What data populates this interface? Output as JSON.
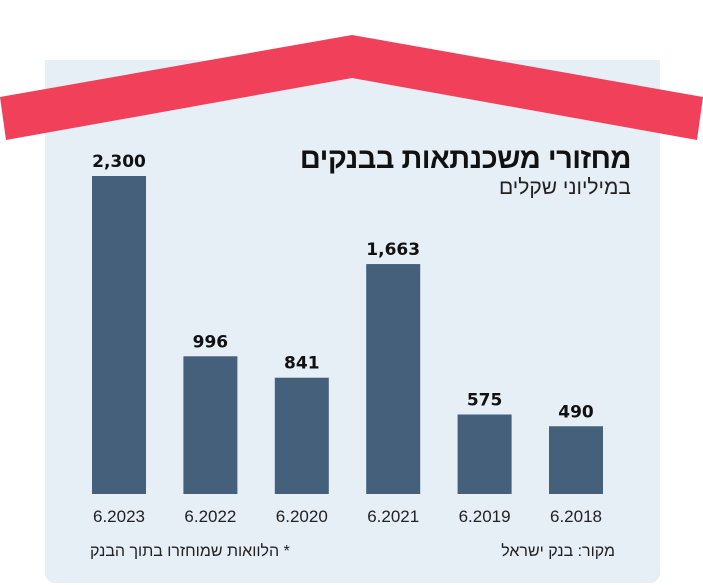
{
  "chart_data": {
    "type": "bar",
    "title": "מחזורי משכנתאות בבנקים",
    "subtitle": "במיליוני שקלים",
    "categories": [
      "6.2023",
      "6.2022",
      "6.2020",
      "6.2021",
      "6.2019",
      "6.2018"
    ],
    "values": [
      2300,
      996,
      841,
      1663,
      575,
      490
    ],
    "value_labels": [
      "2,300",
      "996",
      "841",
      "1,663",
      "575",
      "490"
    ],
    "ylim": [
      0,
      2300
    ],
    "grid": false,
    "bar_color": "#44607a"
  },
  "footer": {
    "source": "מקור: בנק ישראל",
    "note": "* הלוואות שמוחזרו בתוך הבנק"
  },
  "colors": {
    "roof": "#f0405a",
    "background": "#e6eef6"
  }
}
